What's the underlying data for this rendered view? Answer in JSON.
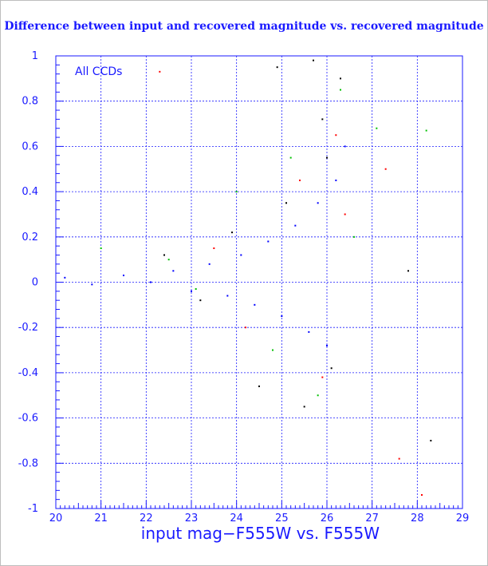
{
  "chart_data": {
    "type": "scatter",
    "title": "Difference between input and recovered magnitude vs. recovered magnitude",
    "xlabel": "input mag−F555W vs. F555W",
    "ylabel": "",
    "annotation": "All CCDs",
    "xlim": [
      20,
      29
    ],
    "ylim": [
      -1,
      1
    ],
    "x_ticks": [
      "20",
      "21",
      "22",
      "23",
      "24",
      "25",
      "26",
      "27",
      "28",
      "29"
    ],
    "y_ticks": [
      "-1",
      "-0.8",
      "-0.6",
      "-0.4",
      "-0.2",
      "0",
      "0.2",
      "0.4",
      "0.6",
      "0.8",
      "1"
    ],
    "grid": true,
    "colors": {
      "axis": "#1a1aff",
      "grid": "#1a1aff",
      "text": "#1a1aff",
      "frame_bg": "#000000"
    },
    "series": [
      {
        "color": "#0000ff",
        "x": [
          20.2,
          20.8,
          21.5,
          22.1,
          22.6,
          23.0,
          23.4,
          23.8,
          24.1,
          24.4,
          24.7,
          25.0,
          25.3,
          25.6,
          25.8,
          26.0,
          26.2,
          26.4
        ],
        "y": [
          0.02,
          -0.01,
          0.03,
          0.0,
          0.05,
          -0.04,
          0.08,
          -0.06,
          0.12,
          -0.1,
          0.18,
          -0.15,
          0.25,
          -0.22,
          0.35,
          -0.28,
          0.45,
          0.6
        ]
      },
      {
        "color": "#000000",
        "x": [
          22.4,
          23.2,
          23.9,
          24.5,
          25.1,
          25.5,
          25.9,
          26.1,
          26.3,
          24.9,
          25.7,
          26.0,
          27.8,
          28.3
        ],
        "y": [
          0.12,
          -0.08,
          0.22,
          -0.46,
          0.35,
          -0.55,
          0.72,
          -0.38,
          0.9,
          0.95,
          0.98,
          0.55,
          0.05,
          -0.7
        ]
      },
      {
        "color": "#ff0000",
        "x": [
          22.3,
          23.5,
          24.2,
          25.4,
          25.9,
          26.2,
          26.4,
          27.3,
          27.6,
          28.1
        ],
        "y": [
          0.93,
          0.15,
          -0.2,
          0.45,
          -0.42,
          0.65,
          0.3,
          0.5,
          -0.78,
          -0.94
        ]
      },
      {
        "color": "#00c000",
        "x": [
          21.0,
          22.5,
          23.1,
          24.0,
          24.8,
          25.2,
          25.8,
          26.3,
          26.6,
          27.1,
          28.2
        ],
        "y": [
          0.15,
          0.1,
          -0.03,
          0.4,
          -0.3,
          0.55,
          -0.5,
          0.85,
          0.2,
          0.68,
          0.67
        ]
      }
    ]
  }
}
